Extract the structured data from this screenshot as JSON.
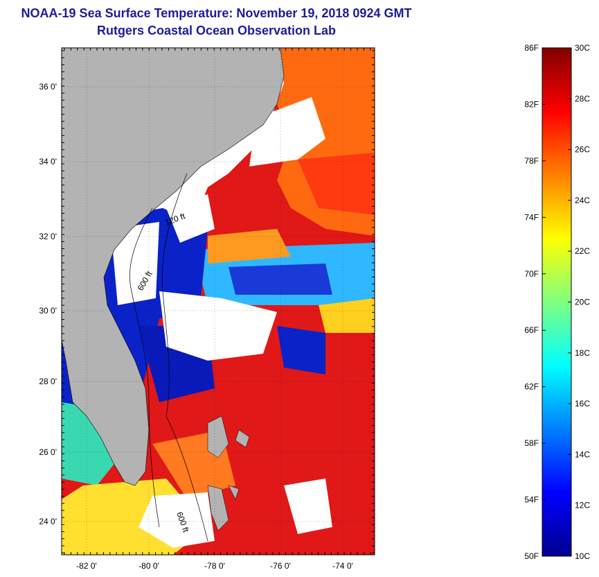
{
  "title": {
    "line1": "NOAA-19 Sea Surface Temperature:  November 19, 2018 0924 GMT",
    "line2": "Rutgers Coastal Ocean Observation Lab"
  },
  "map": {
    "lat_labels": [
      "36 0'",
      "34 0'",
      "32 0'",
      "30 0'",
      "28 0'",
      "26 0'",
      "24 0'"
    ],
    "lon_labels": [
      "-82 0'",
      "-80 0'",
      "-78 0'",
      "-76 0'",
      "-74 0'"
    ],
    "contour_labels": [
      "120 ft",
      "600 ft",
      "600 ft"
    ],
    "land_color": "#b3b3b3",
    "cloud_color": "#ffffff"
  },
  "colorbar": {
    "fahrenheit": [
      "86F",
      "82F",
      "78F",
      "74F",
      "70F",
      "66F",
      "62F",
      "58F",
      "54F",
      "50F"
    ],
    "celsius": [
      "30C",
      "28C",
      "26C",
      "24C",
      "22C",
      "20C",
      "18C",
      "16C",
      "14C",
      "12C",
      "10C"
    ],
    "colors": [
      "#00008f",
      "#0000ff",
      "#0080ff",
      "#00ffff",
      "#80ff80",
      "#ffff00",
      "#ff8000",
      "#ff0000",
      "#800000"
    ]
  }
}
